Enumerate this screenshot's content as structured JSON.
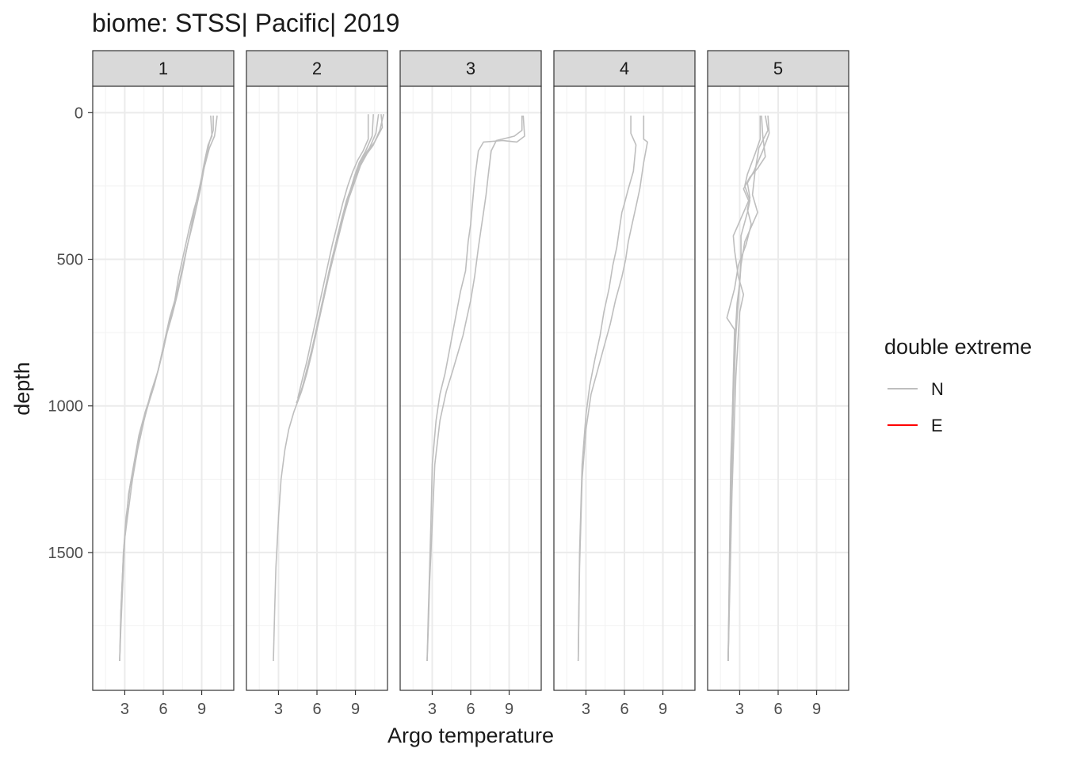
{
  "chart_data": {
    "type": "line",
    "title": "biome: STSS| Pacific| 2019",
    "xlabel": "Argo temperature",
    "ylabel": "depth",
    "xlim": [
      0.5,
      11.5
    ],
    "ylim": [
      1970,
      -90
    ],
    "y_reversed": true,
    "x_ticks": [
      3,
      6,
      9
    ],
    "x_minor": [
      1.5,
      4.5,
      7.5,
      10.5
    ],
    "y_ticks": [
      0,
      500,
      1000,
      1500
    ],
    "y_minor": [
      250,
      750,
      1250,
      1750
    ],
    "grid": true,
    "legend": {
      "title": "double extreme",
      "position": "right",
      "entries": [
        {
          "label": "N",
          "color": "#bebebe"
        },
        {
          "label": "E",
          "color": "#ff0000"
        }
      ]
    },
    "panels": [
      {
        "label": "1",
        "series": [
          {
            "extreme": "N",
            "x": [
              10.2,
              10.1,
              10,
              9.6,
              9.3,
              9,
              8.8,
              8.4,
              8.0,
              7.6,
              7.2,
              6.9,
              6.5,
              6.2,
              5.9,
              5.6,
              5.0,
              4.5,
              4.0,
              3.6,
              3.3,
              3.0,
              2.9,
              2.7,
              2.6
            ],
            "y": [
              10,
              50,
              80,
              120,
              170,
              220,
              270,
              330,
              400,
              480,
              560,
              640,
              700,
              760,
              820,
              880,
              960,
              1050,
              1150,
              1250,
              1350,
              1450,
              1550,
              1750,
              1870
            ]
          },
          {
            "extreme": "N",
            "x": [
              9.9,
              9.9,
              9.6,
              9.3,
              9.1,
              8.9,
              8.6,
              8.3,
              7.9,
              7.5,
              7.1,
              6.7,
              6.3,
              6.0,
              5.6,
              5.2,
              4.6,
              4.1,
              3.7,
              3.3,
              3.1,
              2.9,
              2.7,
              2.6
            ],
            "y": [
              10,
              60,
              100,
              160,
              210,
              260,
              320,
              380,
              450,
              540,
              620,
              690,
              750,
              810,
              880,
              940,
              1020,
              1100,
              1200,
              1300,
              1400,
              1500,
              1700,
              1870
            ]
          },
          {
            "extreme": "N",
            "x": [
              9.7,
              9.8,
              9.5,
              9.2,
              9.0,
              8.7,
              8.4,
              8.1,
              7.7,
              7.3,
              6.9,
              6.5,
              6.1,
              5.7,
              5.3,
              4.8,
              4.3,
              3.8,
              3.4,
              3.1,
              2.9,
              2.7,
              2.6
            ],
            "y": [
              10,
              80,
              110,
              170,
              220,
              280,
              340,
              410,
              490,
              570,
              650,
              710,
              780,
              860,
              930,
              1000,
              1080,
              1180,
              1280,
              1380,
              1500,
              1700,
              1870
            ]
          }
        ]
      },
      {
        "label": "2",
        "series": [
          {
            "extreme": "N",
            "x": [
              11.2,
              10.9,
              10.4,
              9.9,
              9.4,
              9.0,
              8.5,
              8.1,
              7.7,
              7.3,
              6.9,
              6.5,
              6.1,
              5.7,
              5.3,
              4.9,
              4.5,
              4.2,
              3.8,
              3.5,
              3.2,
              3.0,
              2.8,
              2.7,
              2.6
            ],
            "y": [
              5,
              60,
              110,
              140,
              180,
              230,
              290,
              350,
              420,
              490,
              560,
              640,
              710,
              790,
              860,
              930,
              985,
              1020,
              1080,
              1150,
              1250,
              1380,
              1550,
              1700,
              1870
            ]
          },
          {
            "extreme": "N",
            "x": [
              10.8,
              10.6,
              10.1,
              9.6,
              9.1,
              8.7,
              8.2,
              7.8,
              7.4,
              7.0,
              6.6,
              6.2,
              5.8,
              5.4,
              5.0,
              4.6,
              4.4
            ],
            "y": [
              5,
              70,
              120,
              150,
              200,
              260,
              320,
              390,
              460,
              530,
              610,
              690,
              770,
              850,
              920,
              970,
              990
            ]
          },
          {
            "extreme": "N",
            "x": [
              10.4,
              10.3,
              9.8,
              9.3,
              8.9,
              8.5,
              8.0,
              7.6,
              7.2,
              6.8,
              6.4,
              6.0,
              5.6,
              5.2,
              4.8,
              4.5
            ],
            "y": [
              5,
              80,
              130,
              170,
              220,
              280,
              350,
              420,
              500,
              580,
              660,
              740,
              820,
              890,
              950,
              985
            ]
          },
          {
            "extreme": "N",
            "x": [
              10.0,
              10.0,
              9.6,
              9.2,
              8.8,
              8.4,
              8.0,
              7.6,
              7.2,
              6.8,
              6.4,
              6.0,
              5.6,
              5.2,
              4.8,
              4.5
            ],
            "y": [
              5,
              90,
              130,
              160,
              200,
              250,
              310,
              380,
              450,
              530,
              610,
              690,
              770,
              850,
              920,
              975
            ]
          },
          {
            "extreme": "N",
            "x": [
              11.0,
              11.1,
              10.5,
              9.8,
              9.3,
              8.8,
              8.3,
              7.9,
              7.5,
              7.1,
              6.7,
              6.3,
              5.9,
              5.5,
              5.1,
              4.7,
              4.4
            ],
            "y": [
              5,
              50,
              100,
              140,
              185,
              240,
              300,
              370,
              440,
              510,
              590,
              670,
              750,
              830,
              900,
              960,
              990
            ]
          }
        ]
      },
      {
        "label": "3",
        "series": [
          {
            "extreme": "N",
            "x": [
              10.0,
              10.0,
              9.4,
              8.0,
              7.6,
              7.4,
              7.2,
              7.0,
              6.8,
              6.6,
              6.3,
              6.0,
              5.7,
              5.4,
              5.0,
              4.6,
              4.1,
              3.6,
              3.2,
              3.0,
              2.8,
              2.7,
              2.6
            ],
            "y": [
              10,
              60,
              80,
              95,
              130,
              200,
              280,
              340,
              400,
              460,
              560,
              640,
              700,
              760,
              820,
              880,
              950,
              1050,
              1200,
              1400,
              1600,
              1750,
              1870
            ]
          },
          {
            "extreme": "N",
            "x": [
              10.1,
              10.2,
              9.6,
              8.5,
              7.0,
              6.6,
              6.3,
              6.1,
              6.0,
              5.8,
              5.6,
              5.2,
              4.9,
              4.6,
              4.3,
              4.0,
              3.6,
              3.3,
              3.0,
              2.9,
              2.7,
              2.6
            ],
            "y": [
              10,
              80,
              100,
              95,
              100,
              130,
              230,
              330,
              380,
              440,
              540,
              610,
              680,
              750,
              820,
              890,
              960,
              1050,
              1200,
              1400,
              1700,
              1870
            ]
          }
        ]
      },
      {
        "label": "4",
        "series": [
          {
            "extreme": "N",
            "x": [
              7.5,
              7.5,
              7.8,
              7.5,
              7.2,
              6.9,
              6.6,
              6.3,
              6.1,
              5.8,
              5.3,
              4.9,
              4.4,
              3.9,
              3.4,
              3.0,
              2.7,
              2.5,
              2.4
            ],
            "y": [
              10,
              90,
              100,
              170,
              260,
              320,
              380,
              440,
              500,
              560,
              640,
              720,
              800,
              880,
              960,
              1080,
              1250,
              1550,
              1870
            ]
          },
          {
            "extreme": "N",
            "x": [
              6.5,
              6.5,
              6.9,
              6.7,
              6.3,
              6.0,
              5.8,
              5.6,
              5.4,
              5.1,
              4.8,
              4.4,
              4.1,
              3.7,
              3.3,
              3.0,
              2.7,
              2.5,
              2.4
            ],
            "y": [
              10,
              70,
              110,
              200,
              260,
              310,
              340,
              400,
              460,
              520,
              600,
              680,
              760,
              840,
              930,
              1030,
              1200,
              1500,
              1870
            ]
          }
        ]
      },
      {
        "label": "5",
        "series": [
          {
            "extreme": "N",
            "x": [
              5.0,
              5.2,
              4.5,
              4.2,
              4.0,
              4.4,
              4.0,
              3.4,
              3.1,
              3.0,
              2.9,
              2.7,
              2.5,
              2.3,
              2.1
            ],
            "y": [
              10,
              60,
              120,
              200,
              280,
              340,
              380,
              440,
              520,
              580,
              640,
              760,
              1000,
              1400,
              1870
            ]
          },
          {
            "extreme": "N",
            "x": [
              4.7,
              4.8,
              5.0,
              4.4,
              3.8,
              3.3,
              3.7,
              3.0,
              2.5,
              2.6,
              2.9,
              3.3,
              3.0,
              2.7,
              2.4,
              2.1
            ],
            "y": [
              10,
              80,
              150,
              190,
              220,
              260,
              300,
              370,
              420,
              470,
              560,
              620,
              680,
              900,
              1300,
              1870
            ]
          },
          {
            "extreme": "N",
            "x": [
              5.2,
              5.3,
              4.8,
              4.1,
              3.6,
              3.8,
              3.6,
              3.9,
              3.5,
              2.9,
              2.6,
              2.0,
              2.6,
              2.5,
              2.3,
              2.1
            ],
            "y": [
              10,
              70,
              130,
              200,
              240,
              290,
              330,
              380,
              450,
              520,
              600,
              700,
              740,
              900,
              1300,
              1870
            ]
          },
          {
            "extreme": "N",
            "x": [
              4.6,
              4.6,
              4.2,
              3.6,
              3.4,
              3.8,
              3.6,
              3.1,
              3.1,
              3.0,
              2.8,
              2.6,
              2.3,
              2.1
            ],
            "y": [
              10,
              90,
              140,
              210,
              250,
              300,
              340,
              420,
              500,
              580,
              650,
              800,
              1200,
              1870
            ]
          }
        ]
      }
    ]
  }
}
